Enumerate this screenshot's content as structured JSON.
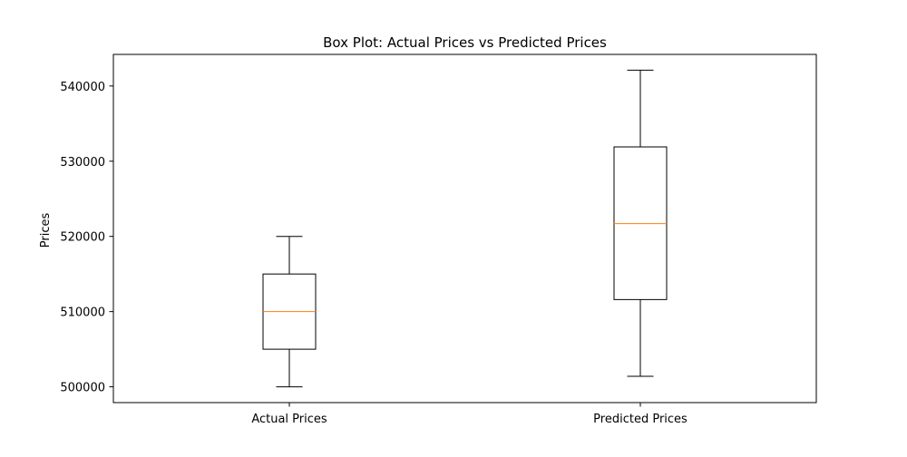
{
  "chart_data": {
    "type": "box",
    "title": "Box Plot: Actual Prices vs Predicted Prices",
    "xlabel": "",
    "ylabel": "Prices",
    "categories": [
      "Actual Prices",
      "Predicted Prices"
    ],
    "boxes": [
      {
        "category": "Actual Prices",
        "whisker_low": 500000,
        "q1": 505000,
        "median": 510000,
        "q3": 515000,
        "whisker_high": 520000
      },
      {
        "category": "Predicted Prices",
        "whisker_low": 501400,
        "q1": 511600,
        "median": 521700,
        "q3": 531900,
        "whisker_high": 542100
      }
    ],
    "ylim": [
      497900,
      544200
    ],
    "yticks": [
      500000,
      510000,
      520000,
      530000,
      540000
    ],
    "grid": false,
    "colors": {
      "box": "#000000",
      "median": "#ff7f0e",
      "axes": "#000000"
    }
  }
}
